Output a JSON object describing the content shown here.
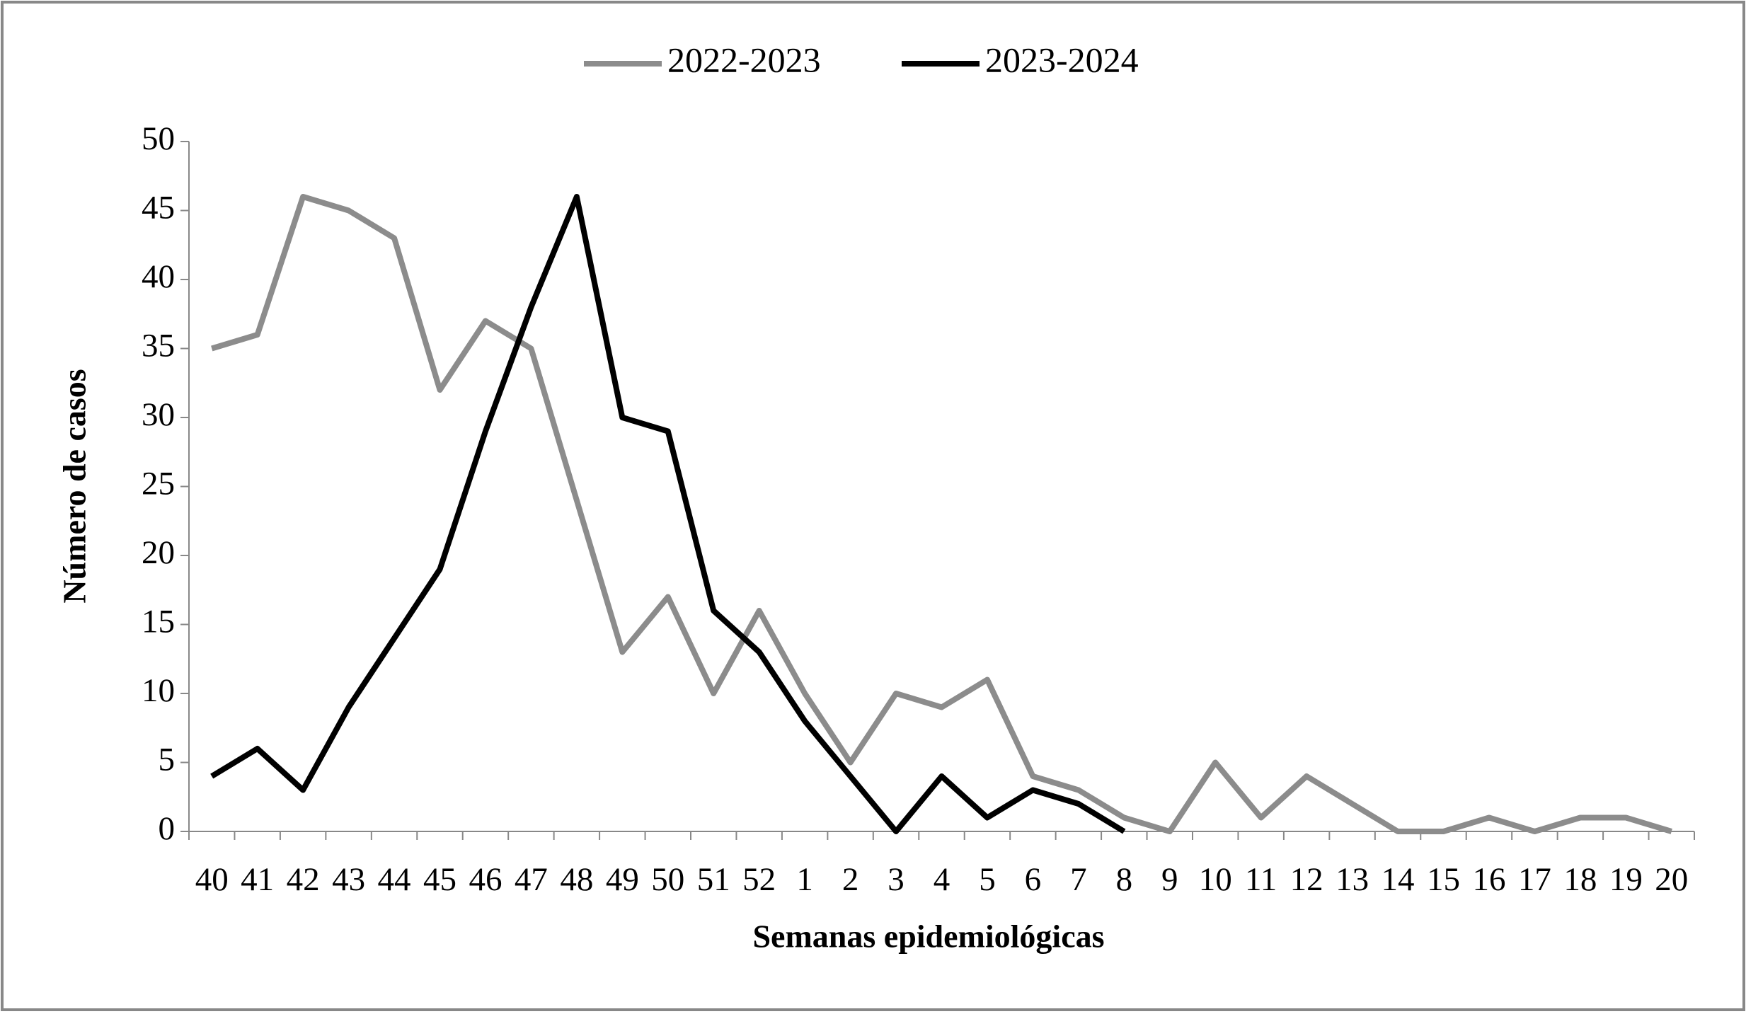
{
  "chart_data": {
    "type": "line",
    "x_label": "Semanas epidemiológicas",
    "y_label": "Número de casos",
    "categories": [
      "40",
      "41",
      "42",
      "43",
      "44",
      "45",
      "46",
      "47",
      "48",
      "49",
      "50",
      "51",
      "52",
      "1",
      "2",
      "3",
      "4",
      "5",
      "6",
      "7",
      "8",
      "9",
      "10",
      "11",
      "12",
      "13",
      "14",
      "15",
      "16",
      "17",
      "18",
      "19",
      "20"
    ],
    "series": [
      {
        "name": "2022-2023",
        "color": "#8c8c8c",
        "values": [
          35,
          36,
          46,
          45,
          43,
          32,
          37,
          35,
          24,
          13,
          17,
          10,
          16,
          10,
          5,
          10,
          9,
          11,
          4,
          3,
          1,
          0,
          5,
          1,
          4,
          2,
          0,
          0,
          1,
          0,
          1,
          1,
          0
        ]
      },
      {
        "name": "2023-2024",
        "color": "#000000",
        "values": [
          4,
          6,
          3,
          9,
          14,
          19,
          29,
          38,
          46,
          30,
          29,
          16,
          13,
          8,
          4,
          0,
          4,
          1,
          3,
          2,
          0,
          null,
          null,
          null,
          null,
          null,
          null,
          null,
          null,
          null,
          null,
          null,
          null
        ]
      }
    ],
    "ylim": [
      0,
      50
    ],
    "yticks": [
      0,
      5,
      10,
      15,
      20,
      25,
      30,
      35,
      40,
      45,
      50
    ],
    "legend": "top"
  }
}
